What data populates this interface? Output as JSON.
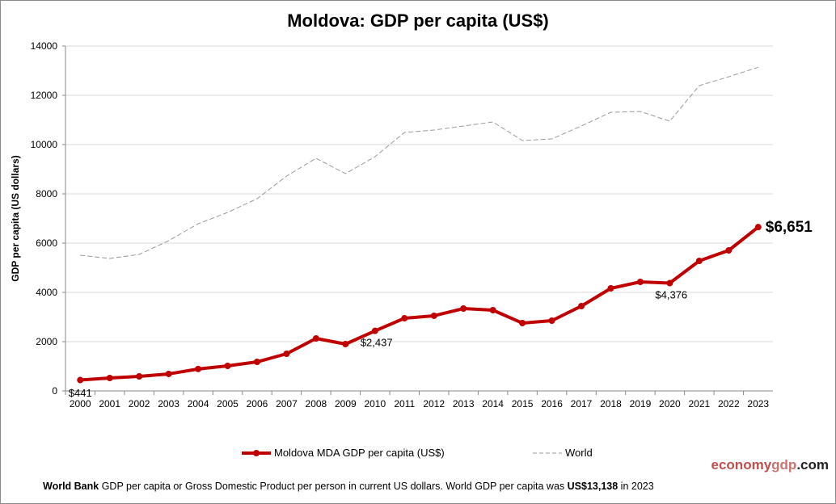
{
  "chart_data": {
    "type": "line",
    "title": "Moldova: GDP per capita (US$)",
    "ylabel": "GDP per capita (US dollars)",
    "xlabel": "",
    "ylim": [
      0,
      14000
    ],
    "yticks": [
      0,
      2000,
      4000,
      6000,
      8000,
      10000,
      12000,
      14000
    ],
    "grid": true,
    "legend_position": "bottom",
    "categories": [
      "2000",
      "2001",
      "2002",
      "2003",
      "2004",
      "2005",
      "2006",
      "2007",
      "2008",
      "2009",
      "2010",
      "2011",
      "2012",
      "2013",
      "2014",
      "2015",
      "2016",
      "2017",
      "2018",
      "2019",
      "2020",
      "2021",
      "2022",
      "2023"
    ],
    "series": [
      {
        "name": "Moldova MDA GDP per capita (US$)",
        "color": "#c00000",
        "values": [
          441,
          525,
          590,
          690,
          890,
          1016,
          1180,
          1508,
          2131,
          1902,
          2437,
          2950,
          3050,
          3344,
          3279,
          2754,
          2852,
          3443,
          4164,
          4426,
          4376,
          5279,
          5705,
          6651
        ]
      },
      {
        "name": "World",
        "color": "#999999",
        "style": "dashed",
        "values": [
          5508,
          5377,
          5541,
          6098,
          6787,
          7246,
          7803,
          8721,
          9443,
          8820,
          9508,
          10492,
          10590,
          10754,
          10918,
          10164,
          10230,
          10754,
          11311,
          11344,
          10951,
          12393,
          12754,
          13138
        ]
      }
    ],
    "annotations": [
      {
        "year": "2000",
        "text": "$441"
      },
      {
        "year": "2010",
        "text": "$2,437"
      },
      {
        "year": "2020",
        "text": "$4,376"
      },
      {
        "year": "2023",
        "text": "$6,651"
      }
    ]
  },
  "brand": {
    "part1": "economy",
    "part2": "gdp",
    "part3": ".com"
  },
  "footer": {
    "source": "World Bank",
    "text": " GDP per capita or Gross Domestic Product per person  in current US dollars.   World GDP per capita was ",
    "value": "US$13,138",
    "suffix": "  in 2023"
  }
}
